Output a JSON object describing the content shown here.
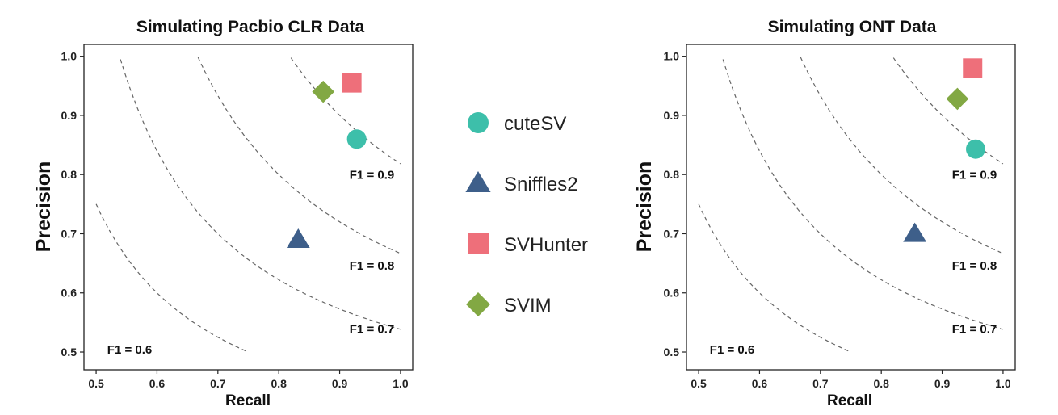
{
  "legend": [
    {
      "name": "cuteSV",
      "shape": "circle",
      "color": "#3dbfaa"
    },
    {
      "name": "Sniffles2",
      "shape": "triangle",
      "color": "#3e5f8a"
    },
    {
      "name": "SVHunter",
      "shape": "square",
      "color": "#ee6f7a"
    },
    {
      "name": "SVIM",
      "shape": "diamond",
      "color": "#82a843"
    }
  ],
  "chart_data": [
    {
      "type": "scatter",
      "title": "Simulating Pacbio CLR Data",
      "xlabel": "Recall",
      "ylabel": "Precision",
      "xlim": [
        0.48,
        1.02
      ],
      "ylim": [
        0.47,
        1.02
      ],
      "xticks": [
        "0.5",
        "0.6",
        "0.7",
        "0.8",
        "0.9",
        "1.0"
      ],
      "yticks": [
        "0.5",
        "0.6",
        "0.7",
        "0.8",
        "0.9",
        "1.0"
      ],
      "f1_curves": [
        {
          "f1": 0.6,
          "label": "F1 = 0.6"
        },
        {
          "f1": 0.7,
          "label": "F1 = 0.7"
        },
        {
          "f1": 0.8,
          "label": "F1 = 0.8"
        },
        {
          "f1": 0.9,
          "label": "F1 = 0.9"
        }
      ],
      "series": [
        {
          "name": "cuteSV",
          "x": 0.928,
          "y": 0.86
        },
        {
          "name": "Sniffles2",
          "x": 0.832,
          "y": 0.69
        },
        {
          "name": "SVHunter",
          "x": 0.92,
          "y": 0.955
        },
        {
          "name": "SVIM",
          "x": 0.873,
          "y": 0.94
        }
      ]
    },
    {
      "type": "scatter",
      "title": "Simulating ONT Data",
      "xlabel": "Recall",
      "ylabel": "Precision",
      "xlim": [
        0.48,
        1.02
      ],
      "ylim": [
        0.47,
        1.02
      ],
      "xticks": [
        "0.5",
        "0.6",
        "0.7",
        "0.8",
        "0.9",
        "1.0"
      ],
      "yticks": [
        "0.5",
        "0.6",
        "0.7",
        "0.8",
        "0.9",
        "1.0"
      ],
      "f1_curves": [
        {
          "f1": 0.6,
          "label": "F1 = 0.6"
        },
        {
          "f1": 0.7,
          "label": "F1 = 0.7"
        },
        {
          "f1": 0.8,
          "label": "F1 = 0.8"
        },
        {
          "f1": 0.9,
          "label": "F1 = 0.9"
        }
      ],
      "series": [
        {
          "name": "cuteSV",
          "x": 0.955,
          "y": 0.843
        },
        {
          "name": "Sniffles2",
          "x": 0.855,
          "y": 0.7
        },
        {
          "name": "SVHunter",
          "x": 0.95,
          "y": 0.98
        },
        {
          "name": "SVIM",
          "x": 0.925,
          "y": 0.928
        }
      ]
    }
  ]
}
